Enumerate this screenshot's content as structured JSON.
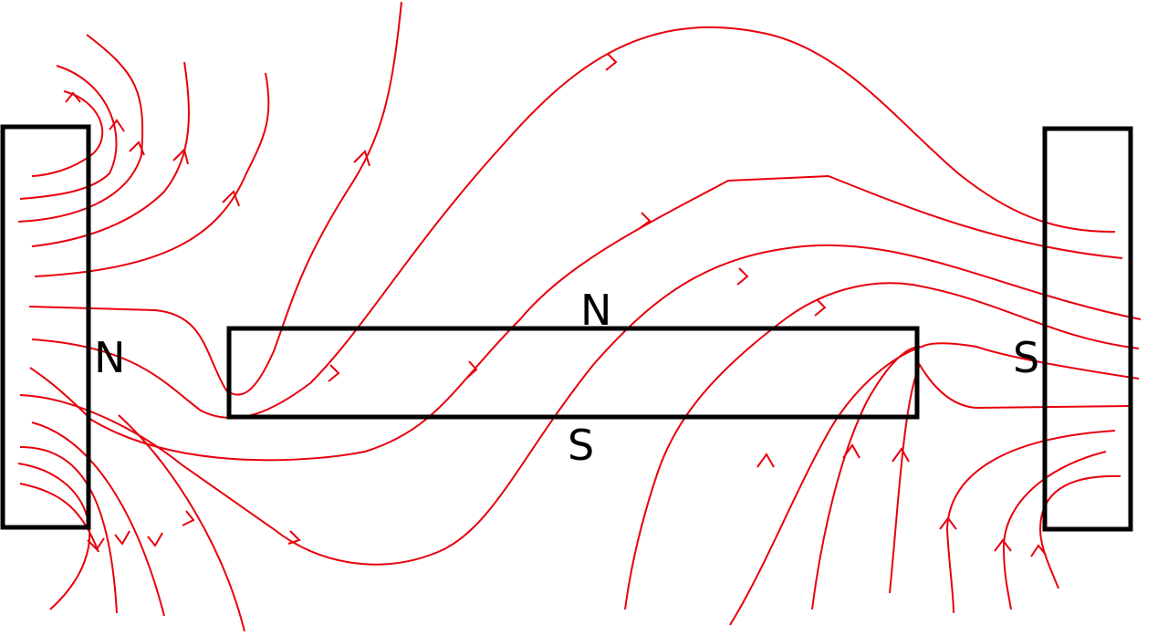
{
  "labels": {
    "left_magnet": "N",
    "center_top": "N",
    "center_bottom": "S",
    "right_magnet": "S"
  }
}
